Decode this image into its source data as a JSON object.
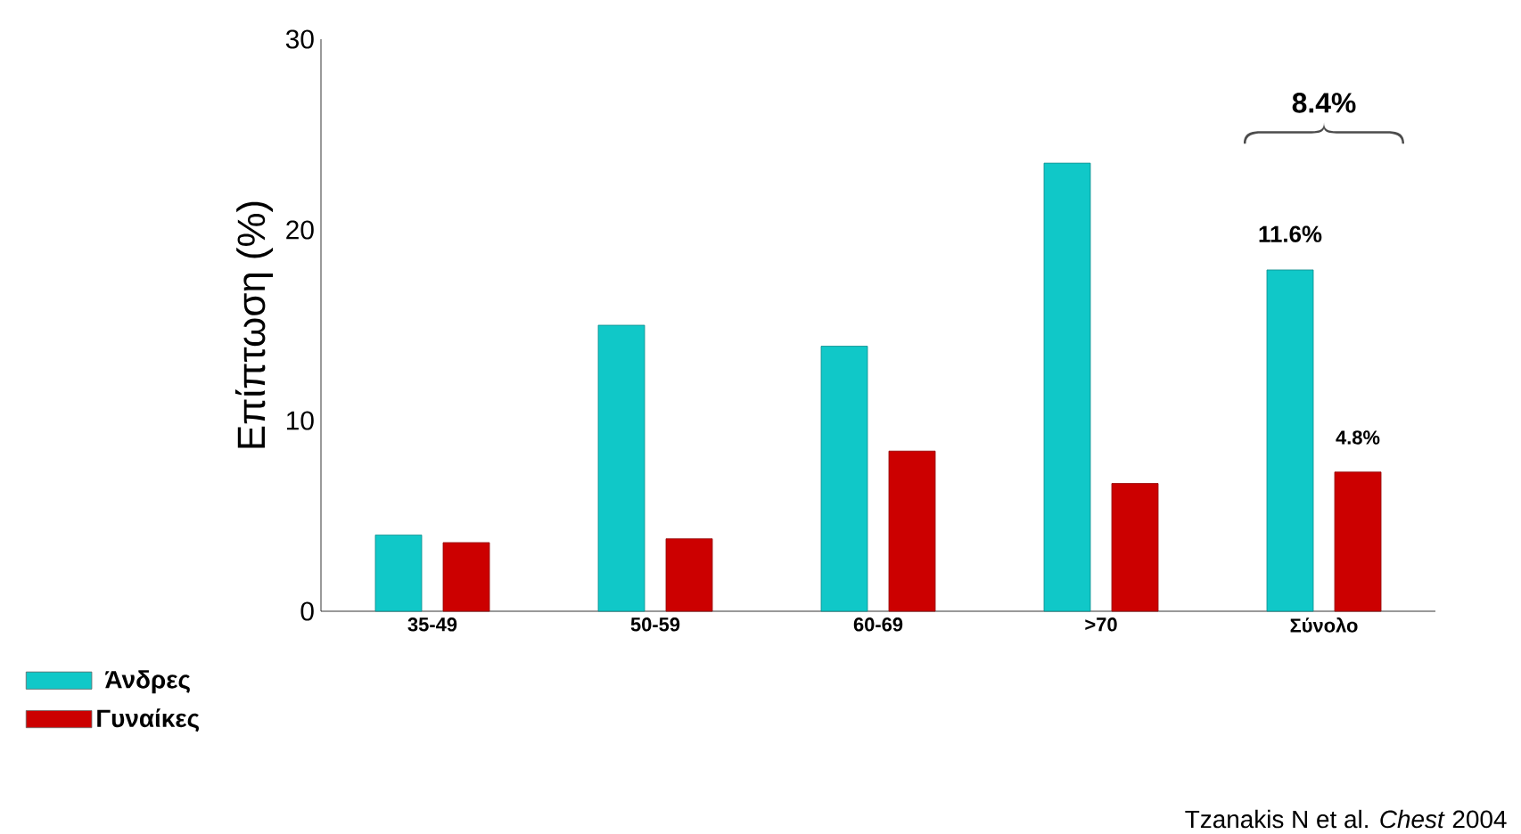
{
  "chart_data": {
    "type": "bar",
    "ylabel": "Επίπτωση (%)",
    "categories": [
      "35-49",
      "50-59",
      "60-69",
      ">70",
      "Σύνολο"
    ],
    "series": [
      {
        "name": "Άνδρες",
        "color": "#10c8c8",
        "values": [
          4.0,
          15.0,
          13.9,
          23.5,
          17.9
        ]
      },
      {
        "name": "Γυναίκες",
        "color": "#cc0000",
        "values": [
          3.6,
          3.8,
          8.4,
          6.7,
          7.3
        ]
      }
    ],
    "ylim": [
      0,
      30
    ],
    "yticks": [
      0,
      10,
      20,
      30
    ],
    "grid": false,
    "legend": "bottom left",
    "annotations": [
      "8.4%",
      "11.6%",
      "4.8%",
      "Tzanakis N et al. *Chest* 2004"
    ]
  }
}
